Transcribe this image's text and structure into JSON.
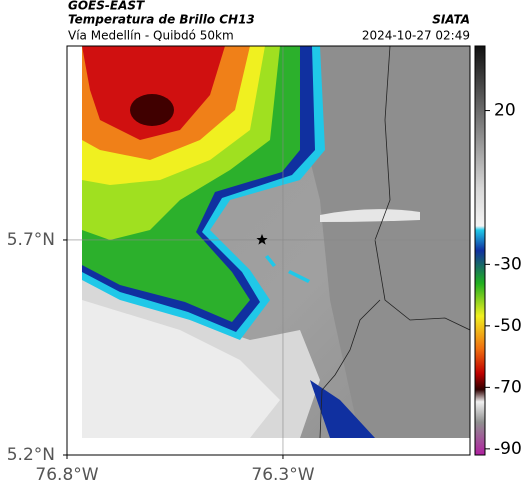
{
  "header": {
    "source": "GOES-EAST",
    "title": "Temperatura de Brillo CH13",
    "brand": "SIATA",
    "region": "Vía Medellín - Quibdó 50km",
    "timestamp": "2024-10-27 02:49"
  },
  "map": {
    "xlim": [
      -76.8,
      -75.867
    ],
    "ylim": [
      5.2,
      6.151
    ],
    "xticks": [
      {
        "value": -76.8,
        "label": "76.8°W"
      },
      {
        "value": -76.3,
        "label": "76.3°W"
      }
    ],
    "yticks": [
      {
        "value": 5.2,
        "label": "5.2°N"
      },
      {
        "value": 5.7,
        "label": "5.7°N"
      }
    ]
  },
  "colorbar": {
    "lim": [
      -92,
      41
    ],
    "ticks": [
      20,
      -30,
      -50,
      -70,
      -90
    ]
  }
}
